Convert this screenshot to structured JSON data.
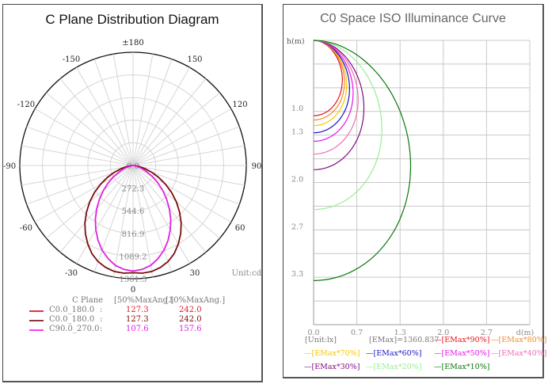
{
  "left_panel": {
    "title": "C Plane Distribution Diagram",
    "unit_label": "Unit:cd",
    "legend": {
      "header": {
        "plane": "C Plane",
        "col1": "[50%MaxAng.]",
        "col2": "[10%MaxAng.]"
      },
      "rows": [
        {
          "name": "C0.0_180.0",
          "colon": ":",
          "v50": "127.3",
          "v10": "242.0",
          "color": "#ee2c3c",
          "value_color": "#e8202a"
        },
        {
          "name": "C0.0_180.0",
          "colon": ":",
          "v50": "127.3",
          "v10": "242.0",
          "color": "#8b3a3a",
          "value_color": "#7a0c0c"
        },
        {
          "name": "C90.0_270.0",
          "colon": ":",
          "v50": "107.6",
          "v10": "157.6",
          "color": "#ff3cff",
          "value_color": "#e020e0"
        }
      ]
    }
  },
  "right_panel": {
    "title": "C0 Space ISO Illuminance Curve",
    "legend": {
      "unit": "[Unit:lx]",
      "emax": "[EMax]=1360.837",
      "items": [
        {
          "label": "[EMax*90%]",
          "color": "#e8141e"
        },
        {
          "label": "[EMax*80%]",
          "color": "#f08c28"
        },
        {
          "label": "[EMax*70%]",
          "color": "#f5c800"
        },
        {
          "label": "[EMax*60%]",
          "color": "#1414c8"
        },
        {
          "label": "[EMax*50%]",
          "color": "#e614e6"
        },
        {
          "label": "[EMax*40%]",
          "color": "#ee6eb4"
        },
        {
          "label": "[EMax*30%]",
          "color": "#820a82"
        },
        {
          "label": "[EMax*20%]",
          "color": "#96ee96"
        },
        {
          "label": "[EMax*10%]",
          "color": "#0a780a"
        }
      ]
    }
  },
  "chart_data": [
    {
      "type": "polar",
      "title": "C Plane Distribution Diagram",
      "unit": "cd",
      "angle_labels": [
        "0",
        "30",
        "60",
        "90",
        "120",
        "150",
        "±180",
        "-150",
        "-120",
        "-90",
        "-60",
        "-30"
      ],
      "angle_ticks": [
        0,
        30,
        60,
        90,
        120,
        150,
        180,
        -150,
        -120,
        -90,
        -60,
        -30
      ],
      "radial_labels": [
        "0.0",
        "272.3",
        "544.6",
        "816.9",
        "1089.2",
        "1361.5"
      ],
      "radial_ticks": [
        0,
        272.3,
        544.6,
        816.9,
        1089.2,
        1361.5
      ],
      "rmax": 1361.5,
      "grid": true,
      "series": [
        {
          "name": "C0.0_180.0",
          "color": "#7a0c0c",
          "angles": [
            0,
            5,
            10,
            15,
            20,
            25,
            30,
            35,
            40,
            45,
            50,
            55,
            60,
            65,
            70,
            75,
            80,
            85,
            88,
            90
          ],
          "values": [
            1290,
            1300,
            1295,
            1270,
            1230,
            1170,
            1090,
            1000,
            900,
            790,
            680,
            565,
            450,
            340,
            240,
            150,
            80,
            30,
            10,
            0
          ]
        },
        {
          "name": "C90.0_270.0",
          "color": "#e020e0",
          "angles": [
            0,
            5,
            10,
            15,
            20,
            25,
            30,
            35,
            40,
            45,
            50,
            55,
            60,
            65,
            70,
            75,
            80,
            85,
            90
          ],
          "values": [
            1270,
            1255,
            1220,
            1160,
            1085,
            995,
            895,
            790,
            680,
            570,
            465,
            365,
            270,
            185,
            115,
            60,
            25,
            5,
            0
          ]
        }
      ]
    },
    {
      "type": "line",
      "title": "C0 Space ISO Illuminance Curve",
      "xlabel": "d(m)",
      "ylabel": "h(m)",
      "x_ticks": [
        "0.0",
        "0.7",
        "1.3",
        "2.0",
        "2.7"
      ],
      "y_ticks": [
        "1.0",
        "1.3",
        "2.0",
        "2.7",
        "3.3"
      ],
      "xlim": [
        0,
        3.33
      ],
      "ylim": [
        0,
        4.0
      ],
      "grid": true,
      "emax_lx": 1360.837,
      "series": [
        {
          "name": "EMax*90%",
          "depth_m": 1.06,
          "reach_m": 0.4
        },
        {
          "name": "EMax*80%",
          "depth_m": 1.12,
          "reach_m": 0.43
        },
        {
          "name": "EMax*70%",
          "depth_m": 1.2,
          "reach_m": 0.46
        },
        {
          "name": "EMax*60%",
          "depth_m": 1.3,
          "reach_m": 0.5
        },
        {
          "name": "EMax*50%",
          "depth_m": 1.42,
          "reach_m": 0.55
        },
        {
          "name": "EMax*40%",
          "depth_m": 1.6,
          "reach_m": 0.62
        },
        {
          "name": "EMax*30%",
          "depth_m": 1.82,
          "reach_m": 0.7
        },
        {
          "name": "EMax*20%",
          "depth_m": 2.38,
          "reach_m": 0.95
        },
        {
          "name": "EMax*10%",
          "depth_m": 3.38,
          "reach_m": 1.35
        }
      ]
    }
  ]
}
